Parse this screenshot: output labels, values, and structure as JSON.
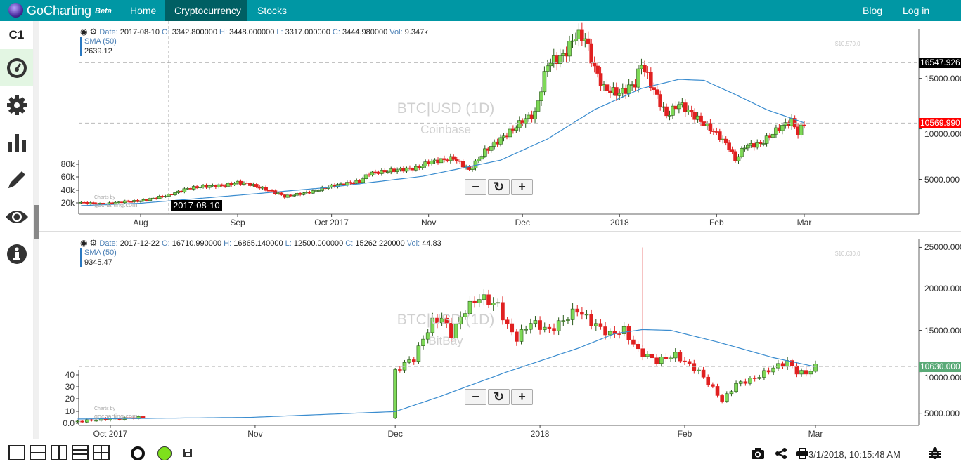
{
  "header": {
    "brand": "GoCharting",
    "beta": "Beta",
    "nav": [
      "Home",
      "Cryptocurrency",
      "Stocks"
    ],
    "active": "Cryptocurrency",
    "right": [
      "Blog",
      "Log in"
    ]
  },
  "sidebar": {
    "chart_id": "C1",
    "icons": [
      "dashboard-icon",
      "gear-icon",
      "bar-chart-icon",
      "pencil-icon",
      "eye-icon",
      "info-icon"
    ]
  },
  "colors": {
    "up": "#7ed957",
    "down": "#e02020",
    "sma": "#3a8ccf",
    "header": "#0097a4"
  },
  "charts": [
    {
      "symbol": "BTC|USD (1D)",
      "exchange": "Coinbase",
      "info": {
        "date": "2017-08-10",
        "o": "3342.800000",
        "h": "3448.000000",
        "l": "3317.000000",
        "c": "3444.980000",
        "vol": "9.347k"
      },
      "sma_label": "SMA (50)",
      "sma_value": "2639.12",
      "ghost_price": "$10,570.0",
      "tags": [
        {
          "value": "16547.926",
          "price": 16547.926,
          "color": "#000000"
        },
        {
          "value": "10569.990",
          "price": 10569.99,
          "color": "#ff0000"
        }
      ],
      "crosshair_label": "2017-08-10",
      "credit": [
        "Charts by",
        "gocharting.com"
      ],
      "y_ticks": [
        "15000.000",
        "10000.000",
        "5000.000"
      ],
      "y_tick_values": [
        15000,
        10000,
        5000
      ],
      "vol_ticks": [
        "80k",
        "60k",
        "40k",
        "20k"
      ],
      "x_ticks": [
        "Aug",
        "Sep",
        "Oct 2017",
        "Nov",
        "Dec",
        "2018",
        "Feb",
        "Mar"
      ],
      "x_tick_days": [
        0,
        31,
        61,
        92,
        122,
        153,
        184,
        212
      ],
      "start_day": -19,
      "end_day": 212,
      "ylim": [
        1700,
        19700
      ],
      "closes": [
        [
          -19,
          2700
        ],
        [
          -12,
          2550
        ],
        [
          -5,
          2800
        ],
        [
          0,
          2870
        ],
        [
          9,
          3440
        ],
        [
          15,
          4100
        ],
        [
          20,
          4300
        ],
        [
          27,
          4400
        ],
        [
          31,
          4700
        ],
        [
          35,
          4500
        ],
        [
          44,
          3600
        ],
        [
          46,
          3300
        ],
        [
          55,
          3800
        ],
        [
          61,
          4350
        ],
        [
          70,
          4800
        ],
        [
          73,
          5600
        ],
        [
          81,
          5900
        ],
        [
          88,
          6100
        ],
        [
          92,
          6700
        ],
        [
          100,
          7100
        ],
        [
          103,
          6400
        ],
        [
          105,
          5900
        ],
        [
          110,
          7800
        ],
        [
          118,
          9700
        ],
        [
          122,
          10800
        ],
        [
          126,
          11500
        ],
        [
          130,
          16500
        ],
        [
          135,
          17200
        ],
        [
          139,
          19300
        ],
        [
          142,
          19000
        ],
        [
          145,
          16000
        ],
        [
          148,
          14000
        ],
        [
          153,
          13500
        ],
        [
          158,
          14500
        ],
        [
          160,
          16500
        ],
        [
          164,
          13800
        ],
        [
          168,
          11300
        ],
        [
          172,
          12500
        ],
        [
          178,
          11000
        ],
        [
          184,
          9500
        ],
        [
          188,
          8200
        ],
        [
          190,
          6900
        ],
        [
          193,
          8300
        ],
        [
          198,
          8500
        ],
        [
          204,
          10100
        ],
        [
          208,
          10800
        ],
        [
          210,
          9600
        ],
        [
          212,
          10570
        ]
      ],
      "sma": [
        [
          -19,
          2400
        ],
        [
          0,
          2640
        ],
        [
          30,
          3400
        ],
        [
          60,
          4200
        ],
        [
          90,
          5300
        ],
        [
          115,
          6900
        ],
        [
          130,
          9000
        ],
        [
          145,
          11900
        ],
        [
          160,
          14000
        ],
        [
          172,
          14900
        ],
        [
          180,
          14800
        ],
        [
          190,
          13400
        ],
        [
          200,
          11900
        ],
        [
          212,
          10600
        ]
      ]
    },
    {
      "symbol": "BTC|USD (1D)",
      "exchange": "BitBay",
      "info": {
        "date": "2017-12-22",
        "o": "16710.990000",
        "h": "16865.140000",
        "l": "12500.000000",
        "c": "15262.220000",
        "vol": "44.83"
      },
      "sma_label": "SMA (50)",
      "sma_value": "9345.47",
      "ghost_price": "$10,630.0",
      "tags": [
        {
          "value": "10630.000",
          "price": 10630,
          "color": "#5aaa77"
        }
      ],
      "credit": [
        "Charts by",
        "gocharting.com"
      ],
      "y_ticks": [
        "25000.000",
        "20000.000",
        "15000.000",
        "10000.000",
        "5000.000"
      ],
      "y_tick_values": [
        25000,
        20000,
        15000,
        10000,
        5000
      ],
      "vol_ticks": [
        "40",
        "30",
        "20",
        "10",
        "0.0"
      ],
      "x_ticks": [
        "Oct 2017",
        "Nov",
        "Dec",
        "2018",
        "Feb",
        "Mar"
      ],
      "x_tick_days": [
        0,
        31,
        61,
        92,
        123,
        151
      ],
      "start_day": -7,
      "end_day": 151,
      "ylim": [
        3700,
        25800
      ],
      "closes": [
        [
          -7,
          4000
        ],
        [
          -3,
          4200
        ],
        [
          3,
          4400
        ],
        [
          7,
          4500
        ],
        [
          61,
          10000
        ],
        [
          63,
          11000
        ],
        [
          65,
          11600
        ],
        [
          67,
          14000
        ],
        [
          69,
          16000
        ],
        [
          71,
          16500
        ],
        [
          73,
          14500
        ],
        [
          76,
          17500
        ],
        [
          79,
          19000
        ],
        [
          83,
          18000
        ],
        [
          85,
          15500
        ],
        [
          87,
          14000
        ],
        [
          90,
          16000
        ],
        [
          94,
          15000
        ],
        [
          97,
          16200
        ],
        [
          100,
          17500
        ],
        [
          103,
          16000
        ],
        [
          107,
          14500
        ],
        [
          110,
          15000
        ],
        [
          113,
          12500
        ],
        [
          117,
          11300
        ],
        [
          121,
          12000
        ],
        [
          126,
          10000
        ],
        [
          129,
          8000
        ],
        [
          131,
          6500
        ],
        [
          134,
          8500
        ],
        [
          138,
          9200
        ],
        [
          142,
          10500
        ],
        [
          145,
          11200
        ],
        [
          147,
          10000
        ],
        [
          149,
          9800
        ],
        [
          151,
          10630
        ]
      ],
      "gap": [
        8,
        60
      ],
      "sma": [
        [
          -7,
          4300
        ],
        [
          30,
          4500
        ],
        [
          61,
          5200
        ],
        [
          70,
          6900
        ],
        [
          85,
          10000
        ],
        [
          100,
          12800
        ],
        [
          108,
          14600
        ],
        [
          114,
          15100
        ],
        [
          120,
          15000
        ],
        [
          130,
          13600
        ],
        [
          142,
          11700
        ],
        [
          151,
          10600
        ]
      ]
    }
  ],
  "footer": {
    "timestamp": "3/1/2018, 10:15:48 AM",
    "icons": [
      "camera-icon",
      "share-icon",
      "print-icon",
      "bug-icon"
    ]
  }
}
